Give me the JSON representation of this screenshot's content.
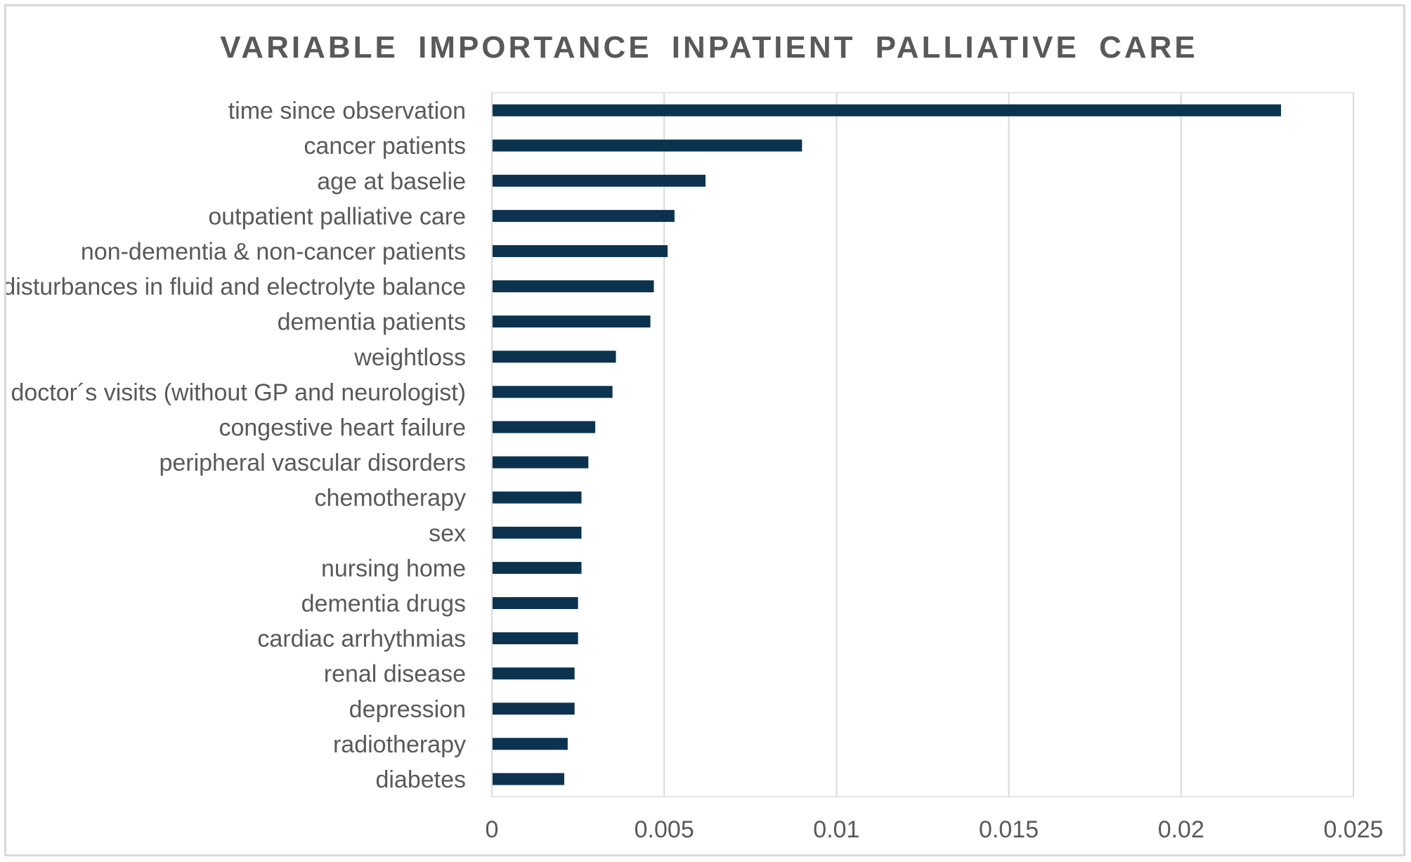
{
  "chart_data": {
    "type": "bar",
    "orientation": "horizontal",
    "title": "VARIABLE IMPORTANCE INPATIENT PALLIATIVE CARE",
    "xlabel": "",
    "ylabel": "",
    "xlim": [
      0,
      0.025
    ],
    "x_ticks": [
      0,
      0.005,
      0.01,
      0.015,
      0.02,
      0.025
    ],
    "x_tick_labels": [
      "0",
      "0.005",
      "0.01",
      "0.015",
      "0.02",
      "0.025"
    ],
    "grid": true,
    "legend": "none",
    "bar_color": "#0b3350",
    "categories": [
      "time since observation",
      "cancer patients",
      "age at baselie",
      "outpatient palliative care",
      "non-dementia & non-cancer patients",
      "disturbances in fluid and electrolyte balance",
      "dementia patients",
      "weightloss",
      "doctor´s visits (without GP and neurologist)",
      "congestive heart failure",
      "peripheral vascular disorders",
      "chemotherapy",
      "sex",
      "nursing home",
      "dementia drugs",
      "cardiac arrhythmias",
      "renal disease",
      "depression",
      "radiotherapy",
      "diabetes"
    ],
    "values": [
      0.0229,
      0.009,
      0.0062,
      0.0053,
      0.0051,
      0.0047,
      0.0046,
      0.0036,
      0.0035,
      0.003,
      0.0028,
      0.0026,
      0.0026,
      0.0026,
      0.0025,
      0.0025,
      0.0024,
      0.0024,
      0.0022,
      0.0021
    ]
  }
}
